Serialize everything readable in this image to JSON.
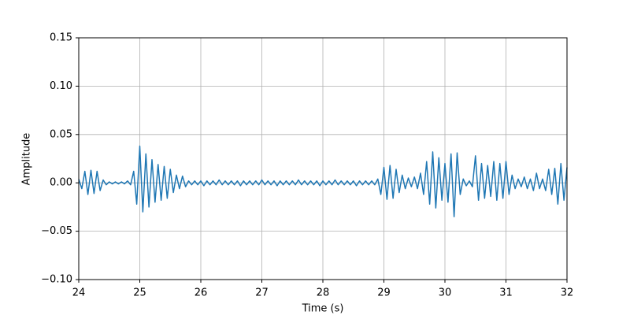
{
  "chart_data": {
    "type": "line",
    "x_label": "Time (s)",
    "y_label": "Amplitude",
    "x": [
      24,
      24.05,
      24.1,
      24.15,
      24.2,
      24.25,
      24.3,
      24.35,
      24.4,
      24.45,
      24.5,
      24.55,
      24.6,
      24.65,
      24.7,
      24.75,
      24.8,
      24.85,
      24.9,
      24.95,
      25,
      25.05,
      25.1,
      25.15,
      25.2,
      25.25,
      25.3,
      25.35,
      25.4,
      25.45,
      25.5,
      25.55,
      25.6,
      25.65,
      25.7,
      25.75,
      25.8,
      25.85,
      25.9,
      25.95,
      26,
      26.05,
      26.1,
      26.15,
      26.2,
      26.25,
      26.3,
      26.35,
      26.4,
      26.45,
      26.5,
      26.55,
      26.6,
      26.65,
      26.7,
      26.75,
      26.8,
      26.85,
      26.9,
      26.95,
      27,
      27.05,
      27.1,
      27.15,
      27.2,
      27.25,
      27.3,
      27.35,
      27.4,
      27.45,
      27.5,
      27.55,
      27.6,
      27.65,
      27.7,
      27.75,
      27.8,
      27.85,
      27.9,
      27.95,
      28,
      28.05,
      28.1,
      28.15,
      28.2,
      28.25,
      28.3,
      28.35,
      28.4,
      28.45,
      28.5,
      28.55,
      28.6,
      28.65,
      28.7,
      28.75,
      28.8,
      28.85,
      28.9,
      28.95,
      29,
      29.05,
      29.1,
      29.15,
      29.2,
      29.25,
      29.3,
      29.35,
      29.4,
      29.45,
      29.5,
      29.55,
      29.6,
      29.65,
      29.7,
      29.75,
      29.8,
      29.85,
      29.9,
      29.95,
      30,
      30.05,
      30.1,
      30.15,
      30.2,
      30.25,
      30.3,
      30.35,
      30.4,
      30.45,
      30.5,
      30.55,
      30.6,
      30.65,
      30.7,
      30.75,
      30.8,
      30.85,
      30.9,
      30.95,
      31,
      31.05,
      31.1,
      31.15,
      31.2,
      31.25,
      31.3,
      31.35,
      31.4,
      31.45,
      31.5,
      31.55,
      31.6,
      31.65,
      31.7,
      31.75,
      31.8,
      31.85,
      31.9,
      31.95,
      32
    ],
    "series": [
      {
        "color": "#1f77b4",
        "values": [
          0.004,
          -0.006,
          0.012,
          -0.012,
          0.013,
          -0.011,
          0.012,
          -0.008,
          0.003,
          -0.002,
          0.001,
          -0.001,
          0.001,
          -0.001,
          0.001,
          -0.001,
          0.002,
          -0.002,
          0.012,
          -0.022,
          0.038,
          -0.03,
          0.03,
          -0.025,
          0.024,
          -0.02,
          0.019,
          -0.018,
          0.017,
          -0.016,
          0.014,
          -0.01,
          0.008,
          -0.006,
          0.007,
          -0.004,
          0.002,
          -0.002,
          0.002,
          -0.002,
          0.002,
          -0.003,
          0.002,
          -0.002,
          0.002,
          -0.002,
          0.003,
          -0.002,
          0.002,
          -0.002,
          0.002,
          -0.002,
          0.002,
          -0.003,
          0.002,
          -0.002,
          0.002,
          -0.002,
          0.002,
          -0.002,
          0.003,
          -0.002,
          0.002,
          -0.002,
          0.002,
          -0.003,
          0.002,
          -0.002,
          0.002,
          -0.002,
          0.002,
          -0.002,
          0.003,
          -0.002,
          0.002,
          -0.002,
          0.002,
          -0.002,
          0.002,
          -0.003,
          0.002,
          -0.002,
          0.002,
          -0.002,
          0.003,
          -0.002,
          0.002,
          -0.002,
          0.002,
          -0.002,
          0.002,
          -0.003,
          0.002,
          -0.002,
          0.002,
          -0.002,
          0.002,
          -0.002,
          0.004,
          -0.012,
          0.016,
          -0.017,
          0.018,
          -0.016,
          0.014,
          -0.01,
          0.008,
          -0.006,
          0.005,
          -0.004,
          0.006,
          -0.006,
          0.01,
          -0.012,
          0.022,
          -0.022,
          0.032,
          -0.026,
          0.026,
          -0.018,
          0.02,
          -0.02,
          0.03,
          -0.035,
          0.031,
          -0.012,
          0.004,
          -0.003,
          0.002,
          -0.004,
          0.028,
          -0.018,
          0.02,
          -0.016,
          0.018,
          -0.014,
          0.022,
          -0.018,
          0.02,
          -0.016,
          0.022,
          -0.012,
          0.008,
          -0.006,
          0.004,
          -0.004,
          0.006,
          -0.006,
          0.004,
          -0.008,
          0.01,
          -0.006,
          0.004,
          -0.008,
          0.014,
          -0.012,
          0.015,
          -0.022,
          0.02,
          -0.018,
          0.016
        ]
      }
    ],
    "xlim": [
      24,
      32
    ],
    "ylim": [
      -0.1,
      0.15
    ],
    "xticks": [
      24,
      25,
      26,
      27,
      28,
      29,
      30,
      31,
      32
    ],
    "yticks": [
      {
        "value": -0.1,
        "label": "−0.10"
      },
      {
        "value": -0.05,
        "label": "−0.05"
      },
      {
        "value": 0,
        "label": "0.00"
      },
      {
        "value": 0.05,
        "label": "0.05"
      },
      {
        "value": 0.1,
        "label": "0.10"
      },
      {
        "value": 0.15,
        "label": "0.15"
      }
    ],
    "grid": true
  }
}
